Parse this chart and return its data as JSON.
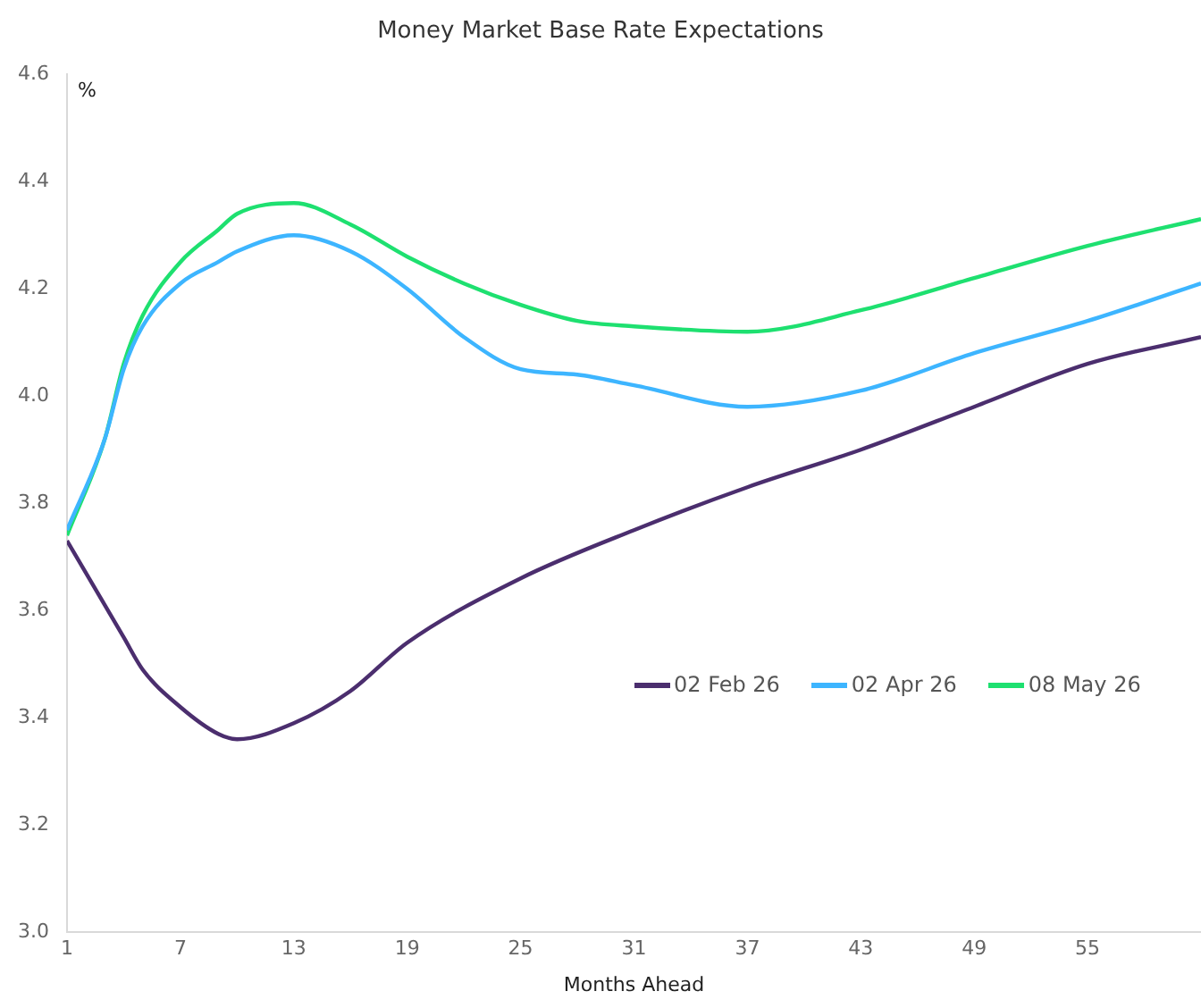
{
  "chart_data": {
    "type": "line",
    "title": "Money Market Base Rate Expectations",
    "xlabel": "Months Ahead",
    "ylabel": "%",
    "x": [
      1,
      3,
      4,
      5,
      7,
      9,
      10,
      13,
      16,
      19,
      22,
      25,
      28,
      31,
      37,
      43,
      49,
      55,
      61
    ],
    "series": [
      {
        "name": "02 Feb 26",
        "color": "#4b2e6e",
        "x": [
          1,
          4,
          5,
          7,
          9,
          10,
          13,
          16,
          19,
          25,
          31,
          37,
          43,
          49,
          55,
          61
        ],
        "values": [
          3.73,
          3.55,
          3.49,
          3.42,
          3.37,
          3.36,
          3.39,
          3.45,
          3.54,
          3.66,
          3.75,
          3.83,
          3.9,
          3.98,
          4.06,
          4.11
        ]
      },
      {
        "name": "02 Apr 26",
        "color": "#3db5ff",
        "values": [
          3.75,
          3.92,
          4.05,
          4.13,
          4.21,
          4.25,
          4.27,
          4.3,
          4.27,
          4.2,
          4.11,
          4.05,
          4.04,
          4.02,
          3.98,
          4.01,
          4.08,
          4.14,
          4.21
        ]
      },
      {
        "name": "08 May 26",
        "color": "#1ee070",
        "values": [
          3.74,
          3.92,
          4.06,
          4.15,
          4.25,
          4.31,
          4.34,
          4.36,
          4.32,
          4.26,
          4.21,
          4.17,
          4.14,
          4.13,
          4.12,
          4.16,
          4.22,
          4.28,
          4.33
        ]
      }
    ],
    "xlim": [
      1,
      61
    ],
    "xticks": [
      1,
      7,
      13,
      19,
      25,
      31,
      37,
      43,
      49,
      55
    ],
    "ylim": [
      3.0,
      4.6
    ],
    "yticks": [
      {
        "value": 3.0,
        "label": "3.0"
      },
      3.2,
      3.4,
      3.6,
      3.8,
      {
        "value": 4.0,
        "label": "4.0"
      },
      4.2,
      4.4,
      4.6
    ],
    "grid": false,
    "legend": "right",
    "marker": "none",
    "line_style": "solid"
  }
}
